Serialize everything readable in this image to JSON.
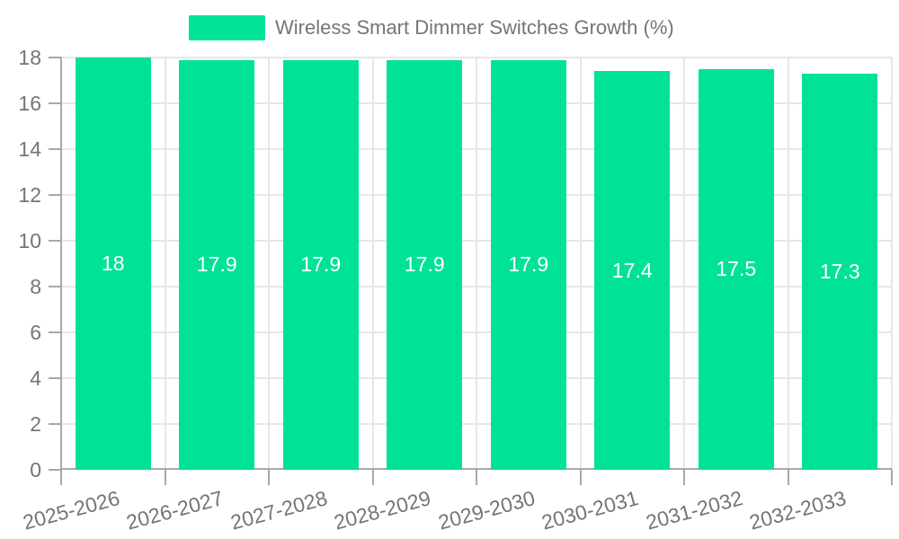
{
  "chart_data": {
    "type": "bar",
    "title": "",
    "legend": "Wireless Smart Dimmer Switches Growth (%)",
    "legend_position": "top",
    "categories": [
      "2025-2026",
      "2026-2027",
      "2027-2028",
      "2028-2029",
      "2029-2030",
      "2030-2031",
      "2031-2032",
      "2032-2033"
    ],
    "values": [
      18,
      17.9,
      17.9,
      17.9,
      17.9,
      17.4,
      17.5,
      17.3
    ],
    "data_labels": [
      "18",
      "17.9",
      "17.9",
      "17.9",
      "17.9",
      "17.4",
      "17.5",
      "17.3"
    ],
    "xlabel": "",
    "ylabel": "",
    "ylim": [
      0,
      18
    ],
    "y_ticks": [
      0,
      2,
      4,
      6,
      8,
      10,
      12,
      14,
      16,
      18
    ],
    "grid": true,
    "colors": {
      "bar": "#00E396",
      "grid": "#e7e7e7",
      "axis": "#a8a8a8",
      "text": "#757575",
      "data_label": "#ffffff"
    }
  }
}
